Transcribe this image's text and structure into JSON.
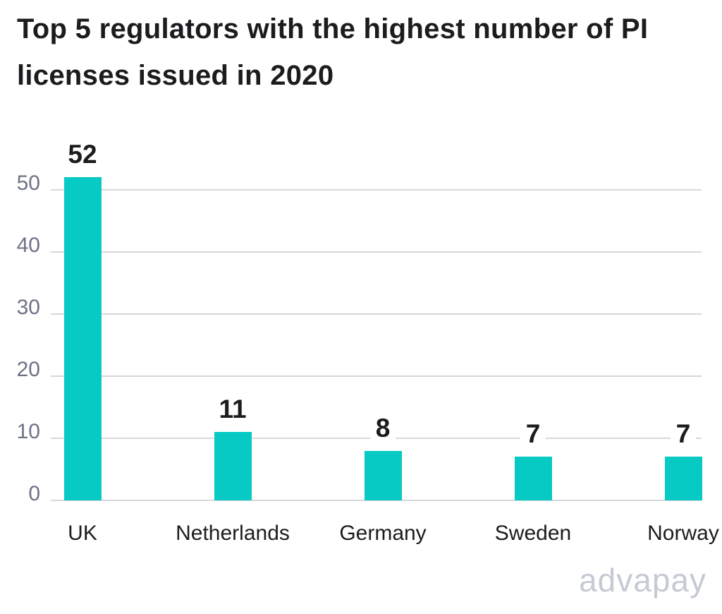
{
  "title": {
    "line1": "Top 5 regulators with the highest number of PI",
    "line2": "licenses issued in 2020"
  },
  "watermark": {
    "text": "advapay",
    "color": "#c6cad5"
  },
  "colors": {
    "background": "#ffffff",
    "title_text": "#1b1c1e",
    "bar": "#06cac3",
    "gridline": "#d7d8dc",
    "tick_label": "#6e7285",
    "value_label": "#1b1c1e",
    "category_label": "#1b1c1e"
  },
  "chart_data": {
    "type": "bar",
    "title": "Top 5 regulators with the highest number of PI licenses issued in 2020",
    "categories": [
      "UK",
      "Netherlands",
      "Germany",
      "Sweden",
      "Norway"
    ],
    "values": [
      52,
      11,
      8,
      7,
      7
    ],
    "value_labels": [
      "52",
      "11",
      "8",
      "7",
      "7"
    ],
    "yticks": [
      0,
      10,
      20,
      30,
      40,
      50
    ],
    "ylim": [
      0,
      55
    ],
    "xlabel": "",
    "ylabel": "",
    "grid": "horizontal",
    "legend": "none",
    "bar_color": "#06cac3",
    "gridline_color": "#d7d8dc",
    "tick_label_color": "#6e7285"
  }
}
